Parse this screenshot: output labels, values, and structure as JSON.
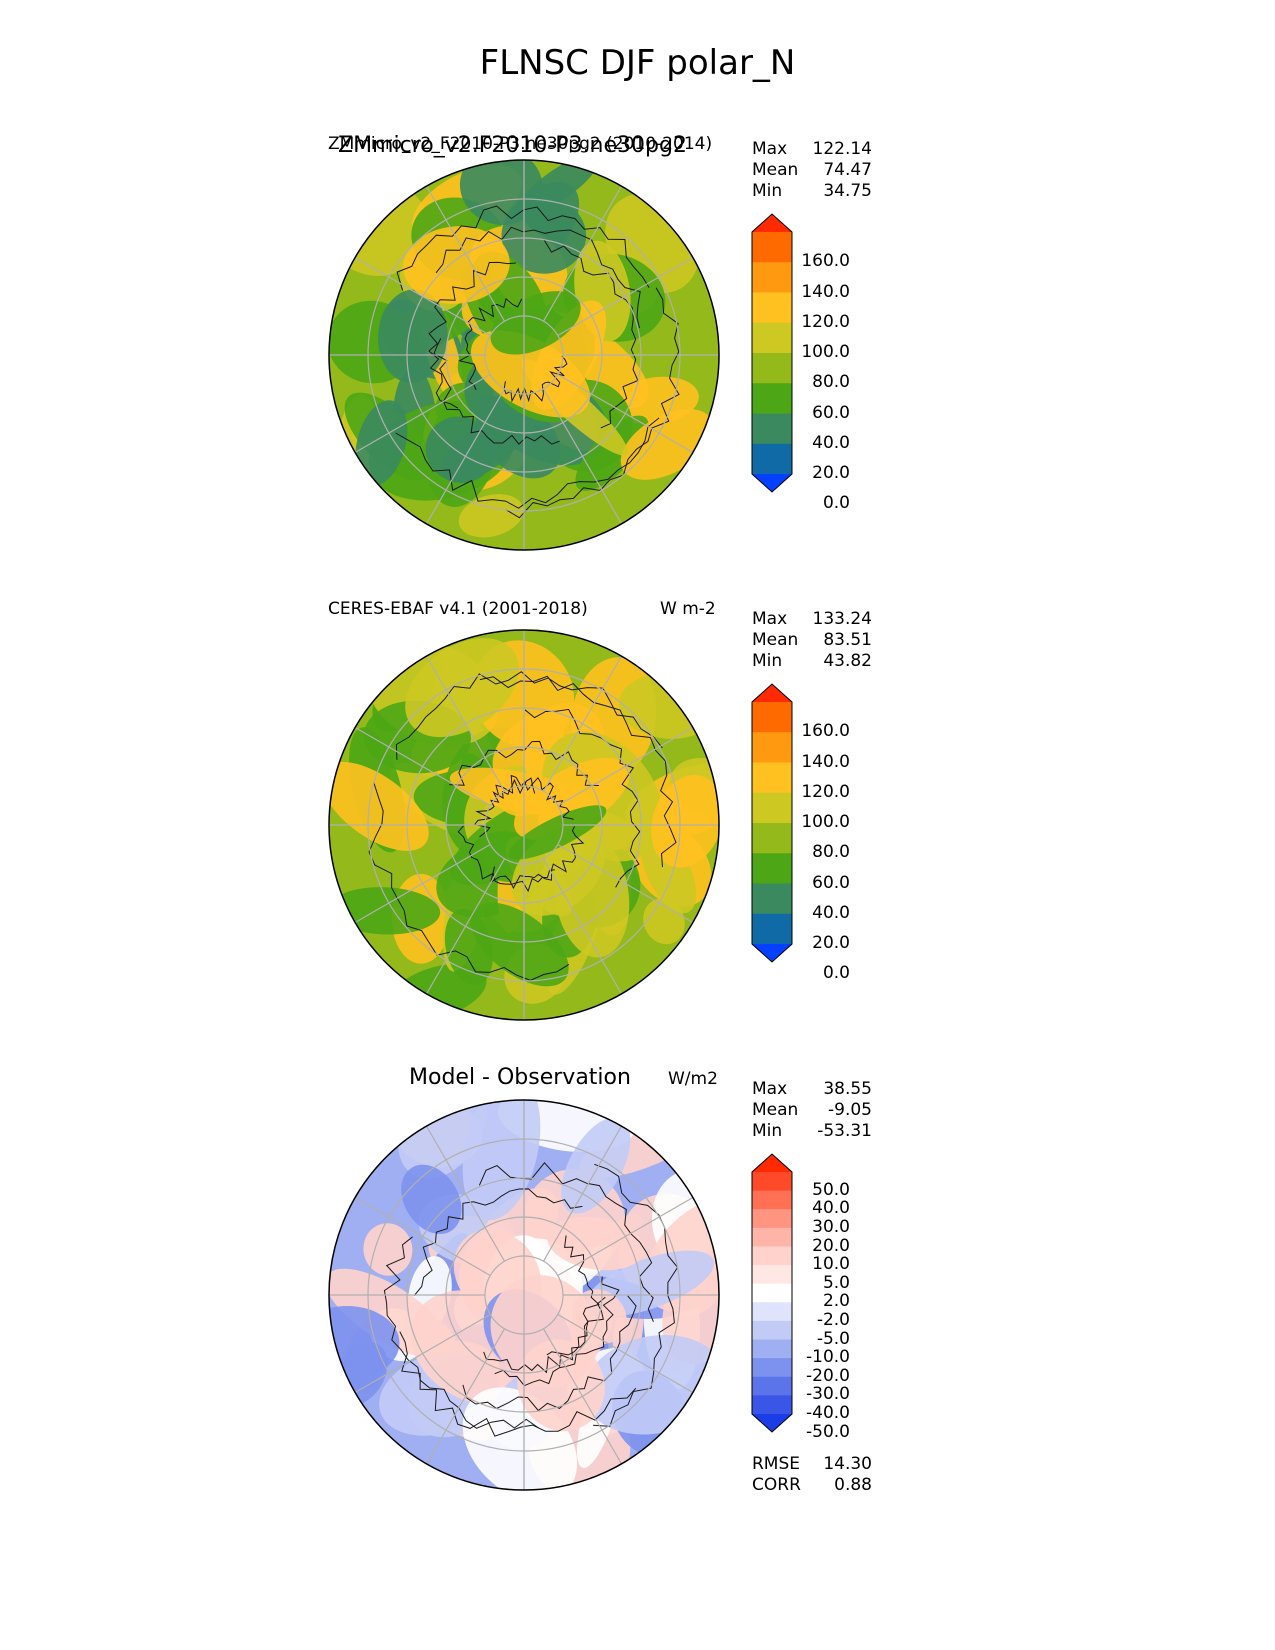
{
  "figure": {
    "title": "FLNSC DJF polar_N"
  },
  "chart_data": [
    {
      "type": "heatmap",
      "projection": "north-polar-stereographic",
      "title": "ZMmicro_v2.F2010-P3.ne30pg2",
      "overlapping_label": "ZMmicro_v2_F2010-P3.ne30pg2 (2010-2014)",
      "units": "",
      "stats": {
        "max_label": "Max",
        "max": "122.14",
        "mean_label": "Mean",
        "mean": "74.47",
        "min_label": "Min",
        "min": "34.75"
      },
      "colorbar": {
        "ticks": [
          "160.0",
          "140.0",
          "120.0",
          "100.0",
          "80.0",
          "60.0",
          "40.0",
          "20.0",
          "0.0"
        ],
        "colors": [
          "#ff2a00",
          "#ff6a00",
          "#ff9a10",
          "#ffc11f",
          "#cdc822",
          "#93ba1a",
          "#4da615",
          "#3b8a5f",
          "#0f6aa6",
          "#0340ff"
        ],
        "extend": "both"
      },
      "dominant_colors": [
        "#93ba1a",
        "#4da615",
        "#ffc11f",
        "#cdc822",
        "#3b8a5f"
      ]
    },
    {
      "type": "heatmap",
      "projection": "north-polar-stereographic",
      "title": "CERES-EBAF v4.1 (2001-2018)",
      "units": "W m-2",
      "stats": {
        "max_label": "Max",
        "max": "133.24",
        "mean_label": "Mean",
        "mean": "83.51",
        "min_label": "Min",
        "min": "43.82"
      },
      "colorbar": {
        "ticks": [
          "160.0",
          "140.0",
          "120.0",
          "100.0",
          "80.0",
          "60.0",
          "40.0",
          "20.0",
          "0.0"
        ],
        "colors": [
          "#ff2a00",
          "#ff6a00",
          "#ff9a10",
          "#ffc11f",
          "#cdc822",
          "#93ba1a",
          "#4da615",
          "#3b8a5f",
          "#0f6aa6",
          "#0340ff"
        ],
        "extend": "both"
      },
      "dominant_colors": [
        "#93ba1a",
        "#ffc11f",
        "#cdc822",
        "#4da615"
      ]
    },
    {
      "type": "heatmap",
      "projection": "north-polar-stereographic",
      "title": "Model - Observation",
      "units": "W/m2",
      "stats": {
        "max_label": "Max",
        "max": "38.55",
        "mean_label": "Mean",
        "mean": "-9.05",
        "min_label": "Min",
        "min": "-53.31"
      },
      "metrics": {
        "rmse_label": "RMSE",
        "rmse": "14.30",
        "corr_label": "CORR",
        "corr": "0.88"
      },
      "colorbar": {
        "ticks": [
          "50.0",
          "40.0",
          "30.0",
          "20.0",
          "10.0",
          "5.0",
          "2.0",
          "-2.0",
          "-5.0",
          "-10.0",
          "-20.0",
          "-30.0",
          "-40.0",
          "-50.0"
        ],
        "colors": [
          "#ff2a00",
          "#ff4a2a",
          "#ff7055",
          "#ff9480",
          "#ffb4a8",
          "#ffd3cc",
          "#ffe8e4",
          "#ffffff",
          "#dfe3fb",
          "#c2cbf6",
          "#a0aff2",
          "#7d92ee",
          "#5b74ea",
          "#3a56e6",
          "#1a3de8"
        ],
        "extend": "both"
      },
      "dominant_colors": [
        "#a0aff2",
        "#7d92ee",
        "#ffd3cc",
        "#ffffff",
        "#c2cbf6"
      ]
    }
  ]
}
